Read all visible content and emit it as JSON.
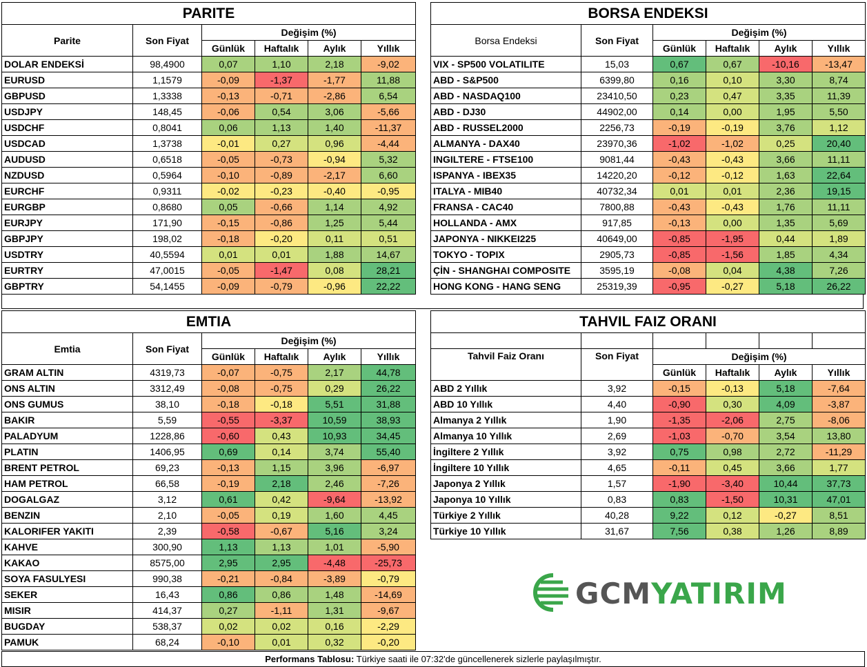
{
  "colors": {
    "green": "#63be7b",
    "lightgreen": "#a9d27f",
    "yellowgreen": "#d4e27f",
    "yellow": "#fde982",
    "orange": "#fbb37a",
    "red": "#f8696b",
    "logo_gray": "#555555",
    "logo_green": "#3aa64a"
  },
  "parite": {
    "title": "PARITE",
    "headers": {
      "name": "Parite",
      "price": "Son Fiyat",
      "change": "Değişim (%)",
      "d": "Günlük",
      "w": "Haftalık",
      "m": "Aylık",
      "y": "Yıllık"
    },
    "rows": [
      {
        "name": "DOLAR ENDEKSİ",
        "price": "98,4900",
        "d": "0,07",
        "w": "1,10",
        "m": "2,18",
        "y": "-9,02"
      },
      {
        "name": "EURUSD",
        "price": "1,1579",
        "d": "-0,09",
        "w": "-1,37",
        "m": "-1,77",
        "y": "11,88"
      },
      {
        "name": "GBPUSD",
        "price": "1,3338",
        "d": "-0,13",
        "w": "-0,71",
        "m": "-2,86",
        "y": "6,54"
      },
      {
        "name": "USDJPY",
        "price": "148,45",
        "d": "-0,06",
        "w": "0,54",
        "m": "3,06",
        "y": "-5,66"
      },
      {
        "name": "USDCHF",
        "price": "0,8041",
        "d": "0,06",
        "w": "1,13",
        "m": "1,40",
        "y": "-11,37"
      },
      {
        "name": "USDCAD",
        "price": "1,3738",
        "d": "-0,01",
        "w": "0,27",
        "m": "0,96",
        "y": "-4,44"
      },
      {
        "name": "AUDUSD",
        "price": "0,6518",
        "d": "-0,05",
        "w": "-0,73",
        "m": "-0,94",
        "y": "5,32"
      },
      {
        "name": "NZDUSD",
        "price": "0,5964",
        "d": "-0,10",
        "w": "-0,89",
        "m": "-2,17",
        "y": "6,60"
      },
      {
        "name": "EURCHF",
        "price": "0,9311",
        "d": "-0,02",
        "w": "-0,23",
        "m": "-0,40",
        "y": "-0,95"
      },
      {
        "name": "EURGBP",
        "price": "0,8680",
        "d": "0,05",
        "w": "-0,66",
        "m": "1,14",
        "y": "4,92"
      },
      {
        "name": "EURJPY",
        "price": "171,90",
        "d": "-0,15",
        "w": "-0,86",
        "m": "1,25",
        "y": "5,44"
      },
      {
        "name": "GBPJPY",
        "price": "198,02",
        "d": "-0,18",
        "w": "-0,20",
        "m": "0,11",
        "y": "0,51"
      },
      {
        "name": "USDTRY",
        "price": "40,5594",
        "d": "0,01",
        "w": "0,01",
        "m": "1,88",
        "y": "14,67"
      },
      {
        "name": "EURTRY",
        "price": "47,0015",
        "d": "-0,05",
        "w": "-1,47",
        "m": "0,08",
        "y": "28,21"
      },
      {
        "name": "GBPTRY",
        "price": "54,1455",
        "d": "-0,09",
        "w": "-0,79",
        "m": "-0,96",
        "y": "22,22"
      }
    ]
  },
  "borsa": {
    "title": "BORSA ENDEKSI",
    "headers": {
      "name": "Borsa Endeksi",
      "price": "Son Fiyat",
      "change": "Değişim (%)",
      "d": "Günlük",
      "w": "Haftalık",
      "m": "Aylık",
      "y": "Yıllık"
    },
    "rows": [
      {
        "name": "VIX  - SP500 VOLATILITE",
        "price": "15,03",
        "d": "0,67",
        "w": "0,67",
        "m": "-10,16",
        "y": "-13,47"
      },
      {
        "name": "ABD - S&P500",
        "price": "6399,80",
        "d": "0,16",
        "w": "0,10",
        "m": "3,30",
        "y": "8,74"
      },
      {
        "name": "ABD - NASDAQ100",
        "price": "23410,50",
        "d": "0,23",
        "w": "0,47",
        "m": "3,35",
        "y": "11,39"
      },
      {
        "name": "ABD - DJ30",
        "price": "44902,00",
        "d": "0,14",
        "w": "0,00",
        "m": "1,95",
        "y": "5,50"
      },
      {
        "name": "ABD - RUSSEL2000",
        "price": "2256,73",
        "d": "-0,19",
        "w": "-0,19",
        "m": "3,76",
        "y": "1,12"
      },
      {
        "name": "ALMANYA - DAX40",
        "price": "23970,36",
        "d": "-1,02",
        "w": "-1,02",
        "m": "0,25",
        "y": "20,40"
      },
      {
        "name": "INGILTERE - FTSE100",
        "price": "9081,44",
        "d": "-0,43",
        "w": "-0,43",
        "m": "3,66",
        "y": "11,11"
      },
      {
        "name": "ISPANYA - IBEX35",
        "price": "14220,20",
        "d": "-0,12",
        "w": "-0,12",
        "m": "1,63",
        "y": "22,64"
      },
      {
        "name": "ITALYA - MIB40",
        "price": "40732,34",
        "d": "0,01",
        "w": "0,01",
        "m": "2,36",
        "y": "19,15"
      },
      {
        "name": "FRANSA - CAC40",
        "price": "7800,88",
        "d": "-0,43",
        "w": "-0,43",
        "m": "1,76",
        "y": "11,11"
      },
      {
        "name": "HOLLANDA - AMX",
        "price": "917,85",
        "d": "-0,13",
        "w": "0,00",
        "m": "1,35",
        "y": "5,69"
      },
      {
        "name": "JAPONYA - NIKKEI225",
        "price": "40649,00",
        "d": "-0,85",
        "w": "-1,95",
        "m": "0,44",
        "y": "1,89"
      },
      {
        "name": "TOKYO - TOPIX",
        "price": "2905,73",
        "d": "-0,85",
        "w": "-1,56",
        "m": "1,85",
        "y": "4,34"
      },
      {
        "name": "ÇİN - SHANGHAI COMPOSITE",
        "price": "3595,19",
        "d": "-0,08",
        "w": "0,04",
        "m": "4,38",
        "y": "7,26"
      },
      {
        "name": "HONG KONG - HANG SENG",
        "price": "25319,39",
        "d": "-0,95",
        "w": "-0,27",
        "m": "5,18",
        "y": "26,22"
      }
    ]
  },
  "emtia": {
    "title": "EMTIA",
    "headers": {
      "name": "Emtia",
      "price": "Son Fiyat",
      "change": "Değişim (%)",
      "d": "Günlük",
      "w": "Haftalık",
      "m": "Aylık",
      "y": "Yıllık"
    },
    "rows": [
      {
        "name": "GRAM ALTIN",
        "price": "4319,73",
        "d": "-0,07",
        "w": "-0,75",
        "m": "2,17",
        "y": "44,78"
      },
      {
        "name": "ONS ALTIN",
        "price": "3312,49",
        "d": "-0,08",
        "w": "-0,75",
        "m": "0,29",
        "y": "26,22"
      },
      {
        "name": "ONS GUMUS",
        "price": "38,10",
        "d": "-0,18",
        "w": "-0,18",
        "m": "5,51",
        "y": "31,88"
      },
      {
        "name": "BAKIR",
        "price": "5,59",
        "d": "-0,55",
        "w": "-3,37",
        "m": "10,59",
        "y": "38,93"
      },
      {
        "name": "PALADYUM",
        "price": "1228,86",
        "d": "-0,60",
        "w": "0,43",
        "m": "10,93",
        "y": "34,45"
      },
      {
        "name": "PLATIN",
        "price": "1406,95",
        "d": "0,69",
        "w": "0,14",
        "m": "3,74",
        "y": "55,40"
      },
      {
        "name": "BRENT PETROL",
        "price": "69,23",
        "d": "-0,13",
        "w": "1,15",
        "m": "3,96",
        "y": "-6,97"
      },
      {
        "name": "HAM PETROL",
        "price": "66,58",
        "d": "-0,19",
        "w": "2,18",
        "m": "2,46",
        "y": "-7,26"
      },
      {
        "name": "DOGALGAZ",
        "price": "3,12",
        "d": "0,61",
        "w": "0,42",
        "m": "-9,64",
        "y": "-13,92"
      },
      {
        "name": "BENZIN",
        "price": "2,10",
        "d": "-0,05",
        "w": "0,19",
        "m": "1,60",
        "y": "4,45"
      },
      {
        "name": "KALORIFER YAKITI",
        "price": "2,39",
        "d": "-0,58",
        "w": "-0,67",
        "m": "5,16",
        "y": "3,24"
      },
      {
        "name": "KAHVE",
        "price": "300,90",
        "d": "1,13",
        "w": "1,13",
        "m": "1,01",
        "y": "-5,90"
      },
      {
        "name": "KAKAO",
        "price": "8575,00",
        "d": "2,95",
        "w": "2,95",
        "m": "-4,48",
        "y": "-25,73"
      },
      {
        "name": "SOYA FASULYESI",
        "price": "990,38",
        "d": "-0,21",
        "w": "-0,84",
        "m": "-3,89",
        "y": "-0,79"
      },
      {
        "name": "SEKER",
        "price": "16,43",
        "d": "0,86",
        "w": "0,86",
        "m": "1,48",
        "y": "-14,69"
      },
      {
        "name": "MISIR",
        "price": "414,37",
        "d": "0,27",
        "w": "-1,11",
        "m": "1,31",
        "y": "-9,67"
      },
      {
        "name": "BUGDAY",
        "price": "538,37",
        "d": "0,02",
        "w": "0,02",
        "m": "0,16",
        "y": "-2,29"
      },
      {
        "name": "PAMUK",
        "price": "68,24",
        "d": "-0,10",
        "w": "0,01",
        "m": "0,32",
        "y": "-0,20"
      }
    ]
  },
  "tahvil": {
    "title": "TAHVIL FAIZ ORANI",
    "headers": {
      "name": "Tahvil Faiz Oranı",
      "price": "Son Fiyat",
      "change": "Değişim (%)",
      "d": "Günlük",
      "w": "Haftalık",
      "m": "Aylık",
      "y": "Yıllık"
    },
    "rows": [
      {
        "name": "ABD 2 Yıllık",
        "price": "3,92",
        "d": "-0,15",
        "w": "-0,13",
        "m": "5,18",
        "y": "-7,64"
      },
      {
        "name": "ABD 10 Yıllık",
        "price": "4,40",
        "d": "-0,90",
        "w": "0,30",
        "m": "4,09",
        "y": "-3,87"
      },
      {
        "name": "Almanya 2 Yıllık",
        "price": "1,90",
        "d": "-1,35",
        "w": "-2,06",
        "m": "2,75",
        "y": "-8,06"
      },
      {
        "name": "Almanya 10 Yıllık",
        "price": "2,69",
        "d": "-1,03",
        "w": "-0,70",
        "m": "3,54",
        "y": "13,80"
      },
      {
        "name": "İngiltere 2 Yıllık",
        "price": "3,92",
        "d": "0,75",
        "w": "0,98",
        "m": "2,72",
        "y": "-11,29"
      },
      {
        "name": "İngiltere 10 Yıllık",
        "price": "4,65",
        "d": "-0,11",
        "w": "0,45",
        "m": "3,66",
        "y": "1,77"
      },
      {
        "name": "Japonya 2 Yıllık",
        "price": "1,57",
        "d": "-1,90",
        "w": "-3,40",
        "m": "10,44",
        "y": "37,73"
      },
      {
        "name": "Japonya 10 Yıllık",
        "price": "0,83",
        "d": "0,83",
        "w": "-1,50",
        "m": "10,31",
        "y": "47,01"
      },
      {
        "name": "Türkiye 2 Yıllık",
        "price": "40,28",
        "d": "9,22",
        "w": "0,12",
        "m": "-0,27",
        "y": "8,51"
      },
      {
        "name": "Türkiye 10 Yıllık",
        "price": "31,67",
        "d": "7,56",
        "w": "0,38",
        "m": "1,26",
        "y": "8,89"
      }
    ]
  },
  "logo": {
    "part1": "GCM",
    "part2": "YATIRIM",
    "icon": "globe-icon"
  },
  "footer": {
    "bold": "Performans Tablosu:",
    "text": " Türkiye saati ile 07:32'de güncellenerek sizlerle paylaşılmıştır."
  }
}
